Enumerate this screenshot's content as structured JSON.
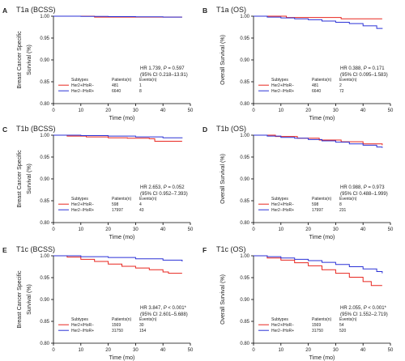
{
  "figure": {
    "x_axis_label": "Time (mo)",
    "legend_header": {
      "subtypes": "Subtypes",
      "patients": "Patients(n)",
      "events": "Events(n)"
    }
  },
  "chart_data": [
    {
      "type": "line",
      "letter": "A",
      "title": "T1a (BCSS)",
      "ylabel": [
        "Breast Cancer Specific",
        "Survival (%)"
      ],
      "xlabel": "Time (mo)",
      "xlim": [
        0,
        50
      ],
      "ylim": [
        0.8,
        1.0
      ],
      "xticks": [
        "0",
        "10",
        "20",
        "30",
        "40",
        "50"
      ],
      "yticks": [
        "0.80",
        "0.85",
        "0.90",
        "0.95",
        "1.00"
      ],
      "grid": false,
      "stats": {
        "hr": "HR 1.739, ",
        "p_label": "P",
        "p_value": " = 0.597",
        "ci": "(95% CI 0.218–13.91)"
      },
      "series": [
        {
          "name": "Her2+/HoR−",
          "patients": "481",
          "events": "1",
          "color": "#e8261f",
          "x": [
            0,
            15,
            47
          ],
          "y": [
            1.0,
            0.998,
            0.998
          ]
        },
        {
          "name": "Her2−/HoR+",
          "patients": "6640",
          "events": "8",
          "color": "#2b32d6",
          "x": [
            0,
            10,
            20,
            30,
            40,
            47
          ],
          "y": [
            1.0,
            0.9995,
            0.999,
            0.9985,
            0.998,
            0.998
          ]
        }
      ]
    },
    {
      "type": "line",
      "letter": "B",
      "title": "T1a (OS)",
      "ylabel": [
        "Overall Survival (%)"
      ],
      "xlabel": "Time (mo)",
      "xlim": [
        0,
        50
      ],
      "ylim": [
        0.8,
        1.0
      ],
      "xticks": [
        "0",
        "10",
        "20",
        "30",
        "40",
        "50"
      ],
      "yticks": [
        "0.80",
        "0.85",
        "0.90",
        "0.95",
        "1.00"
      ],
      "grid": false,
      "stats": {
        "hr": "HR 0.388, ",
        "p_label": "P",
        "p_value": " = 0.171",
        "ci": "(95% CI 0.095–1.583)"
      },
      "series": [
        {
          "name": "Her2+/HoR−",
          "patients": "481",
          "events": "2",
          "color": "#e8261f",
          "x": [
            0,
            10,
            12,
            30,
            32,
            47
          ],
          "y": [
            1.0,
            1.0,
            0.997,
            0.997,
            0.994,
            0.994
          ]
        },
        {
          "name": "Her2−/HoR+",
          "patients": "6640",
          "events": "72",
          "color": "#2b32d6",
          "x": [
            0,
            5,
            10,
            15,
            20,
            25,
            30,
            35,
            40,
            45,
            47
          ],
          "y": [
            1.0,
            0.998,
            0.996,
            0.994,
            0.992,
            0.989,
            0.986,
            0.983,
            0.978,
            0.972,
            0.971
          ]
        }
      ]
    },
    {
      "type": "line",
      "letter": "C",
      "title": "T1b (BCSS)",
      "ylabel": [
        "Breast Cancer Specific",
        "Survival (%)"
      ],
      "xlabel": "Time (mo)",
      "xlim": [
        0,
        50
      ],
      "ylim": [
        0.8,
        1.0
      ],
      "xticks": [
        "0",
        "10",
        "20",
        "30",
        "40",
        "50"
      ],
      "yticks": [
        "0.80",
        "0.85",
        "0.90",
        "0.95",
        "1.00"
      ],
      "grid": false,
      "stats": {
        "hr": "HR 2.653, ",
        "p_label": "P",
        "p_value": " = 0.052",
        "ci": "(95% CI 0.952–7.393)"
      },
      "series": [
        {
          "name": "Her2+/HoR−",
          "patients": "598",
          "events": "4",
          "color": "#e8261f",
          "x": [
            0,
            5,
            12,
            20,
            27,
            35,
            37,
            47
          ],
          "y": [
            1.0,
            0.998,
            0.996,
            0.994,
            0.993,
            0.992,
            0.986,
            0.986
          ]
        },
        {
          "name": "Her2−/HoR+",
          "patients": "17997",
          "events": "43",
          "color": "#2b32d6",
          "x": [
            0,
            10,
            20,
            30,
            40,
            47
          ],
          "y": [
            1.0,
            0.999,
            0.998,
            0.996,
            0.994,
            0.993
          ]
        }
      ]
    },
    {
      "type": "line",
      "letter": "D",
      "title": "T1b (OS)",
      "ylabel": [
        "Overall Survival (%)"
      ],
      "xlabel": "Time (mo)",
      "xlim": [
        0,
        50
      ],
      "ylim": [
        0.8,
        1.0
      ],
      "xticks": [
        "0",
        "10",
        "20",
        "30",
        "40",
        "50"
      ],
      "yticks": [
        "0.80",
        "0.85",
        "0.90",
        "0.95",
        "1.00"
      ],
      "grid": false,
      "stats": {
        "hr": "HR 0.988, ",
        "p_label": "P",
        "p_value": " = 0.973",
        "ci": "(95% CI 0.488–1.999)"
      },
      "series": [
        {
          "name": "Her2+/HoR−",
          "patients": "598",
          "events": "8",
          "color": "#e8261f",
          "x": [
            0,
            8,
            16,
            24,
            32,
            40,
            47
          ],
          "y": [
            1.0,
            0.997,
            0.993,
            0.989,
            0.985,
            0.98,
            0.977
          ]
        },
        {
          "name": "Her2−/HoR+",
          "patients": "17997",
          "events": "231",
          "color": "#2b32d6",
          "x": [
            0,
            5,
            10,
            15,
            20,
            25,
            30,
            35,
            40,
            45,
            47
          ],
          "y": [
            1.0,
            0.998,
            0.995,
            0.993,
            0.99,
            0.987,
            0.984,
            0.98,
            0.977,
            0.973,
            0.971
          ]
        }
      ]
    },
    {
      "type": "line",
      "letter": "E",
      "title": "T1c (BCSS)",
      "ylabel": [
        "Breast Cancer Specific",
        "Survival (%)"
      ],
      "xlabel": "Time (mo)",
      "xlim": [
        0,
        50
      ],
      "ylim": [
        0.8,
        1.0
      ],
      "xticks": [
        "0",
        "10",
        "20",
        "30",
        "40",
        "50"
      ],
      "yticks": [
        "0.80",
        "0.85",
        "0.90",
        "0.95",
        "1.00"
      ],
      "grid": false,
      "stats": {
        "hr": "HR 3.847, ",
        "p_label": "P",
        "p_value": " < 0.001*",
        "ci": "(95% CI 2.601–5.688)"
      },
      "series": [
        {
          "name": "Her2+/HoR−",
          "patients": "1569",
          "events": "30",
          "color": "#e8261f",
          "x": [
            0,
            5,
            10,
            15,
            20,
            25,
            30,
            35,
            40,
            42,
            47
          ],
          "y": [
            1.0,
            0.997,
            0.992,
            0.987,
            0.981,
            0.976,
            0.972,
            0.968,
            0.963,
            0.96,
            0.96
          ]
        },
        {
          "name": "Her2−/HoR+",
          "patients": "31750",
          "events": "154",
          "color": "#2b32d6",
          "x": [
            0,
            10,
            20,
            30,
            40,
            47
          ],
          "y": [
            1.0,
            0.998,
            0.996,
            0.993,
            0.99,
            0.987
          ]
        }
      ]
    },
    {
      "type": "line",
      "letter": "F",
      "title": "T1c (OS)",
      "ylabel": [
        "Overall Survival (%)"
      ],
      "xlabel": "Time (mo)",
      "xlim": [
        0,
        50
      ],
      "ylim": [
        0.8,
        1.0
      ],
      "xticks": [
        "0",
        "10",
        "20",
        "30",
        "40",
        "50"
      ],
      "yticks": [
        "0.80",
        "0.85",
        "0.90",
        "0.95",
        "1.00"
      ],
      "grid": false,
      "stats": {
        "hr": "HR 2.055, ",
        "p_label": "P",
        "p_value": " < 0.001*",
        "ci": "(95% CI 1.552–2.719)"
      },
      "series": [
        {
          "name": "Her2+/HoR−",
          "patients": "1569",
          "events": "54",
          "color": "#e8261f",
          "x": [
            0,
            5,
            10,
            15,
            20,
            25,
            30,
            35,
            40,
            43,
            47
          ],
          "y": [
            1.0,
            0.995,
            0.99,
            0.984,
            0.977,
            0.968,
            0.96,
            0.951,
            0.941,
            0.932,
            0.932
          ]
        },
        {
          "name": "Her2−/HoR+",
          "patients": "31750",
          "events": "520",
          "color": "#2b32d6",
          "x": [
            0,
            5,
            10,
            15,
            20,
            25,
            30,
            35,
            40,
            45,
            47
          ],
          "y": [
            1.0,
            0.998,
            0.995,
            0.992,
            0.989,
            0.985,
            0.98,
            0.975,
            0.97,
            0.964,
            0.96
          ]
        }
      ]
    }
  ]
}
